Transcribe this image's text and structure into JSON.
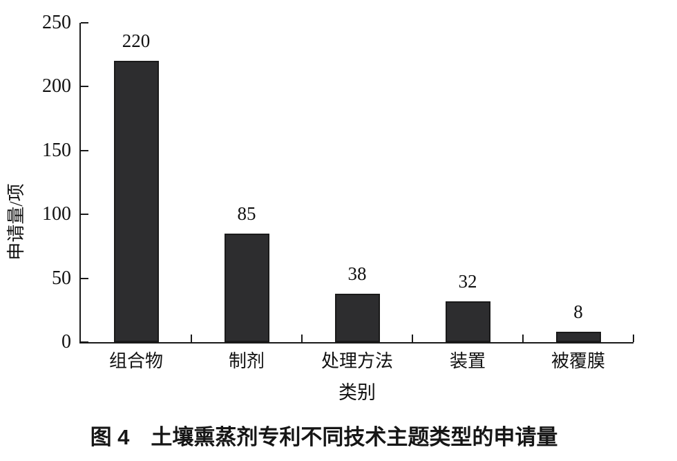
{
  "figure": {
    "caption": "图 4　土壤熏蒸剂专利不同技术主题类型的申请量"
  },
  "chart_data": {
    "type": "bar",
    "categories": [
      "组合物",
      "制剂",
      "处理方法",
      "装置",
      "被覆膜"
    ],
    "values": [
      220,
      85,
      38,
      32,
      8
    ],
    "bar_labels": [
      "220",
      "85",
      "38",
      "32",
      "8"
    ],
    "title": "",
    "xlabel": "类别",
    "ylabel": "申请量/项",
    "ylim": [
      0,
      250
    ],
    "yticks": [
      0,
      50,
      100,
      150,
      200,
      250
    ],
    "ytick_labels": [
      "0",
      "50",
      "100",
      "150",
      "200",
      "250"
    ],
    "grid": false,
    "legend": null,
    "bar_color": "#2d2d2f",
    "bar_border_color": "#1a1a1a",
    "axis_color": "#1a1a1a",
    "text_color": "#111111"
  }
}
